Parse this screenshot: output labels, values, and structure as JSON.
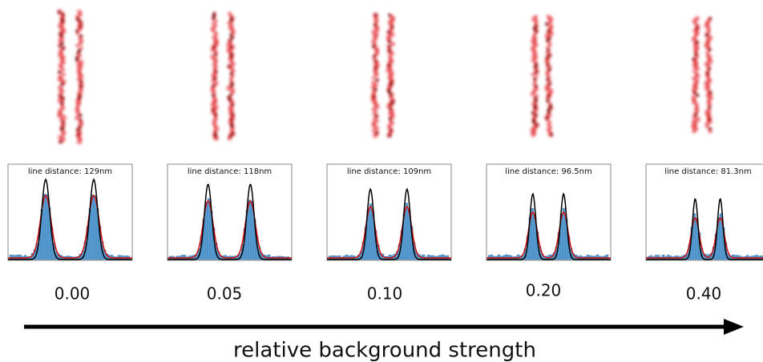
{
  "panels": [
    {
      "distance_label": "line distance: 129nm",
      "strength": "0.00"
    },
    {
      "distance_label": "line distance: 118nm",
      "strength": "0.05"
    },
    {
      "distance_label": "line distance: 109nm",
      "strength": "0.10"
    },
    {
      "distance_label": "line distance: 96.5nm",
      "strength": "0.20"
    },
    {
      "distance_label": "line distance: 81.3nm",
      "strength": "0.40"
    }
  ],
  "axis_label": "relative background strength"
}
